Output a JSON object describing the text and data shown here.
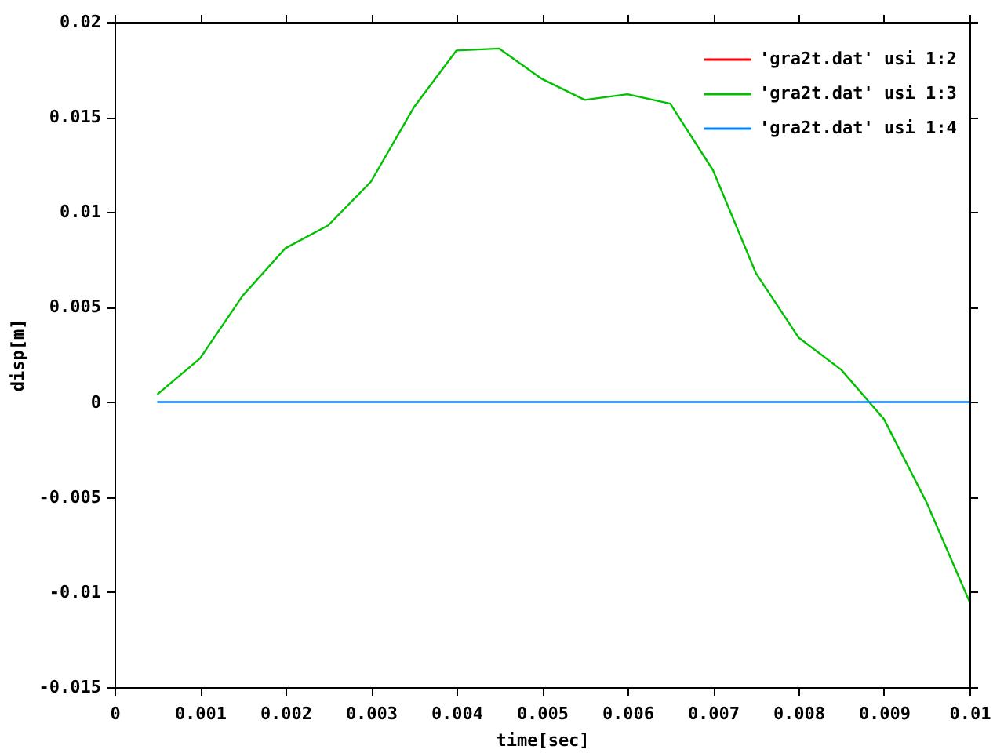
{
  "chart_data": {
    "type": "line",
    "xlabel": "time[sec]",
    "ylabel": "disp[m]",
    "x": [
      0.0005,
      0.001,
      0.0015,
      0.002,
      0.0025,
      0.003,
      0.0035,
      0.004,
      0.0045,
      0.005,
      0.0055,
      0.006,
      0.0065,
      0.007,
      0.0075,
      0.008,
      0.0085,
      0.009,
      0.0095,
      0.01
    ],
    "series": [
      {
        "name": "'gra2t.dat' usi 1:2",
        "color": "#ff0000",
        "values": [
          null,
          null,
          null,
          null,
          null,
          null,
          null,
          null,
          null,
          null,
          null,
          null,
          null,
          null,
          null,
          null,
          null,
          null,
          null,
          null
        ]
      },
      {
        "name": "'gra2t.dat' usi 1:3",
        "color": "#00c000",
        "values": [
          0.0004,
          0.0023,
          0.0056,
          0.0081,
          0.0093,
          0.0116,
          0.0155,
          0.0185,
          0.0186,
          0.017,
          0.0159,
          0.0162,
          0.0157,
          0.0122,
          0.0068,
          0.0034,
          0.0017,
          -0.0009,
          -0.0053,
          -0.0105
        ]
      },
      {
        "name": "'gra2t.dat' usi 1:4",
        "color": "#0080ff",
        "values": [
          0,
          0,
          0,
          0,
          0,
          0,
          0,
          0,
          0,
          0,
          0,
          0,
          0,
          0,
          0,
          0,
          0,
          0,
          0,
          0
        ]
      }
    ],
    "xlim": [
      0,
      0.01
    ],
    "ylim": [
      -0.015,
      0.02
    ],
    "xticks": [
      0,
      0.001,
      0.002,
      0.003,
      0.004,
      0.005,
      0.006,
      0.007,
      0.008,
      0.009,
      0.01
    ],
    "yticks": [
      -0.015,
      -0.01,
      -0.005,
      0,
      0.005,
      0.01,
      0.015,
      0.02
    ],
    "grid": false,
    "legend": "top right",
    "marker": "none",
    "line_style": "solid"
  }
}
